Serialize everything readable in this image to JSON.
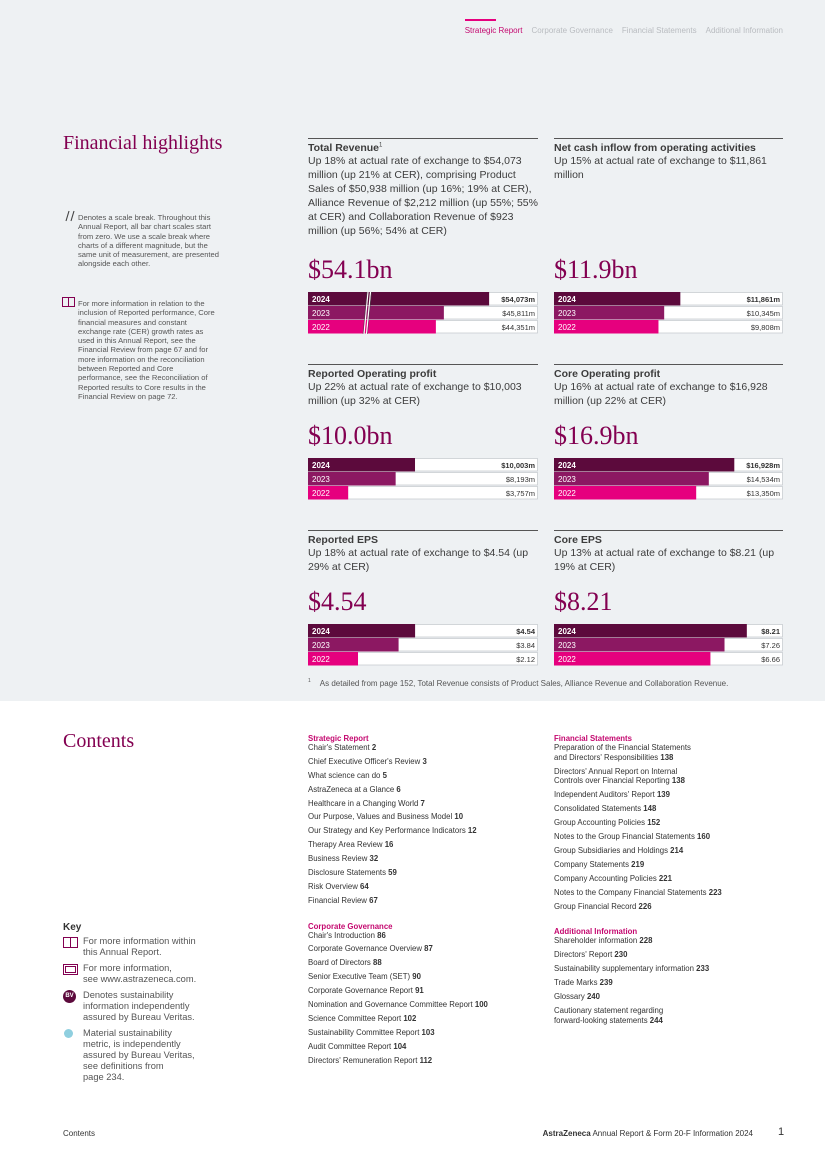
{
  "nav": {
    "items": [
      "Strategic Report",
      "Corporate Governance",
      "Financial Statements",
      "Additional Information"
    ],
    "active": 0
  },
  "highlights": {
    "title": "Financial highlights",
    "notes": [
      "Denotes a scale break. Throughout this Annual Report, all bar chart scales start from zero. We use a scale break where charts of a different magnitude, but the same unit of measurement, are presented alongside each other.",
      "For more information in relation to the inclusion of Reported performance, Core financial measures and constant exchange rate (CER) growth rates as used in this Annual Report, see the Financial Review from page 67 and for more information on the reconciliation between Reported and Core performance, see the Reconciliation of Reported results to Core results in the Financial Review on page 72."
    ],
    "bar_colors": [
      "#5c0a3c",
      "#8c1862",
      "#e6007e"
    ],
    "cards": [
      {
        "title": "Total Revenue",
        "title_note": "1",
        "description": "Up 18% at actual rate of exchange to $54,073 million (up 21% at CER), comprising Product Sales of $50,938 million (up 16%; 19% at CER), Alliance Revenue of $2,212 million (up 55%; 55% at CER) and Collaboration Revenue of $923 million (up 56%; 54% at CER)",
        "headline": "$54.1bn",
        "chart": {
          "type": "bar",
          "categories": [
            "2024",
            "2023",
            "2022"
          ],
          "values": [
            54073,
            45811,
            44351
          ],
          "value_labels": [
            "$54,073m",
            "$45,811m",
            "$44,351m"
          ],
          "xlim": [
            21000,
            63000
          ],
          "scale_break": true
        }
      },
      {
        "title": "Net cash inflow from operating activities",
        "description": "Up 15% at actual rate of exchange to $11,861 million",
        "headline": "$11.9bn",
        "chart": {
          "type": "bar",
          "categories": [
            "2024",
            "2023",
            "2022"
          ],
          "values": [
            11861,
            10345,
            9808
          ],
          "value_labels": [
            "$11,861m",
            "$10,345m",
            "$9,808m"
          ],
          "xlim": [
            0,
            21500
          ]
        }
      },
      {
        "title": "Reported Operating profit",
        "description": "Up 22% at actual rate of exchange to $10,003 million (up 32% at CER)",
        "headline": "$10.0bn",
        "chart": {
          "type": "bar",
          "categories": [
            "2024",
            "2023",
            "2022"
          ],
          "values": [
            10003,
            8193,
            3757
          ],
          "value_labels": [
            "$10,003m",
            "$8,193m",
            "$3,757m"
          ],
          "xlim": [
            0,
            21500
          ]
        }
      },
      {
        "title": "Core Operating profit",
        "description": "Up 16% at actual rate of exchange to $16,928 million (up 22% at CER)",
        "headline": "$16.9bn",
        "chart": {
          "type": "bar",
          "categories": [
            "2024",
            "2023",
            "2022"
          ],
          "values": [
            16928,
            14534,
            13350
          ],
          "value_labels": [
            "$16,928m",
            "$14,534m",
            "$13,350m"
          ],
          "xlim": [
            0,
            21500
          ]
        }
      },
      {
        "title": "Reported EPS",
        "description": "Up 18% at actual rate of exchange to $4.54 (up 29% at CER)",
        "headline": "$4.54",
        "chart": {
          "type": "bar",
          "categories": [
            "2024",
            "2023",
            "2022"
          ],
          "values": [
            4.54,
            3.84,
            2.12
          ],
          "value_labels": [
            "$4.54",
            "$3.84",
            "$2.12"
          ],
          "xlim": [
            0,
            9.75
          ]
        }
      },
      {
        "title": "Core EPS",
        "description": "Up 13% at actual rate of exchange to $8.21 (up 19% at CER)",
        "headline": "$8.21",
        "chart": {
          "type": "bar",
          "categories": [
            "2024",
            "2023",
            "2022"
          ],
          "values": [
            8.21,
            7.26,
            6.66
          ],
          "value_labels": [
            "$8.21",
            "$7.26",
            "$6.66"
          ],
          "xlim": [
            0,
            9.75
          ]
        }
      }
    ],
    "footnote": {
      "marker": "1",
      "text": "As detailed from page 152, Total Revenue consists of Product Sales, Alliance Revenue and Collaboration Revenue."
    }
  },
  "contents": {
    "title": "Contents",
    "columns": [
      [
        {
          "heading": "Strategic Report",
          "items": [
            {
              "text": "Chair's Statement",
              "page": 2
            },
            {
              "text": "Chief Executive Officer's Review",
              "page": 3
            },
            {
              "text": "What science can do",
              "page": 5
            },
            {
              "text": "AstraZeneca at a Glance",
              "page": 6
            },
            {
              "text": "Healthcare in a Changing World",
              "page": 7
            },
            {
              "text": "Our Purpose, Values and Business Model",
              "page": 10
            },
            {
              "text": "Our Strategy and Key Performance Indicators",
              "page": 12
            },
            {
              "text": "Therapy Area Review",
              "page": 16
            },
            {
              "text": "Business Review",
              "page": 32
            },
            {
              "text": "Disclosure Statements",
              "page": 59
            },
            {
              "text": "Risk Overview",
              "page": 64
            },
            {
              "text": "Financial Review",
              "page": 67
            }
          ]
        },
        {
          "heading": "Corporate Governance",
          "items": [
            {
              "text": "Chair's Introduction",
              "page": 86
            },
            {
              "text": "Corporate Governance Overview",
              "page": 87
            },
            {
              "text": "Board of Directors",
              "page": 88
            },
            {
              "text": "Senior Executive Team (SET)",
              "page": 90
            },
            {
              "text": "Corporate Governance Report",
              "page": 91
            },
            {
              "text": "Nomination and Governance Committee Report",
              "page": 100
            },
            {
              "text": "Science Committee Report",
              "page": 102
            },
            {
              "text": "Sustainability Committee Report",
              "page": 103
            },
            {
              "text": "Audit Committee Report",
              "page": 104
            },
            {
              "text": "Directors' Remuneration Report",
              "page": 112
            }
          ]
        }
      ],
      [
        {
          "heading": "Financial Statements",
          "items": [
            {
              "text": "Preparation of the Financial Statements\nand Directors' Responsibilities",
              "page": 138
            },
            {
              "text": "Directors' Annual Report on Internal\nControls over Financial Reporting",
              "page": 138
            },
            {
              "text": "Independent Auditors' Report",
              "page": 139
            },
            {
              "text": "Consolidated Statements",
              "page": 148
            },
            {
              "text": "Group Accounting Policies",
              "page": 152
            },
            {
              "text": "Notes to the Group Financial Statements",
              "page": 160
            },
            {
              "text": "Group Subsidiaries and Holdings",
              "page": 214
            },
            {
              "text": "Company Statements",
              "page": 219
            },
            {
              "text": "Company Accounting Policies",
              "page": 221
            },
            {
              "text": "Notes to the Company Financial Statements",
              "page": 223
            },
            {
              "text": "Group Financial Record",
              "page": 226
            }
          ]
        },
        {
          "heading": "Additional Information",
          "items": [
            {
              "text": "Shareholder information",
              "page": 228
            },
            {
              "text": "Directors' Report",
              "page": 230
            },
            {
              "text": "Sustainability supplementary information",
              "page": 233
            },
            {
              "text": "Trade Marks",
              "page": 239
            },
            {
              "text": "Glossary",
              "page": 240
            },
            {
              "text": "Cautionary statement regarding\nforward-looking statements",
              "page": 244
            }
          ]
        }
      ]
    ]
  },
  "key": {
    "title": "Key",
    "items": [
      {
        "text": "For more information within\nthis Annual Report."
      },
      {
        "text": "For more information,\nsee www.astrazeneca.com."
      },
      {
        "badge": "BV",
        "text": "Denotes sustainability\ninformation independently\nassured by Bureau Veritas."
      },
      {
        "text": "Material sustainability\nmetric, is independently\nassured by Bureau Veritas,\nsee definitions from\npage 234."
      }
    ]
  },
  "footer": {
    "section": "Contents",
    "brand": "AstraZeneca",
    "publication": "Annual Report & Form 20-F Information 2024",
    "page": 1
  }
}
